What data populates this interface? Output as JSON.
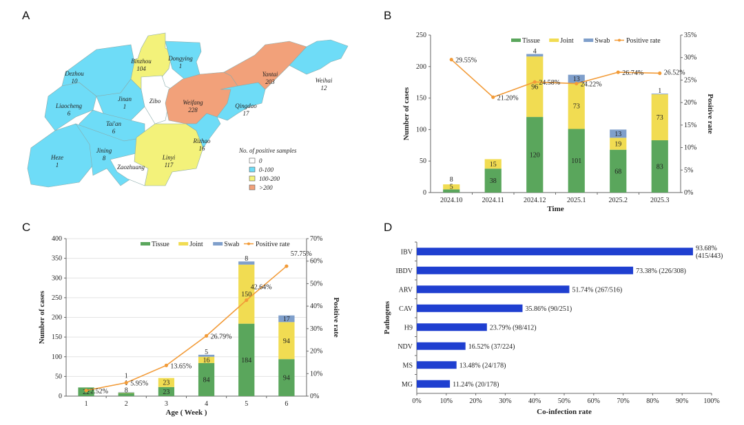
{
  "panels": {
    "a": "A",
    "b": "B",
    "c": "C",
    "d": "D"
  },
  "colors": {
    "tissue": "#5aa65c",
    "joint": "#f1dc52",
    "swab": "#7f9fcb",
    "rate": "#f29b38",
    "bar_d": "#1f3fd0",
    "map_zero": "#ffffff",
    "map_low": "#6edcf7",
    "map_mid": "#f3f27a",
    "map_high": "#f2a17a"
  },
  "map": {
    "legend_title": "No. of positive samples",
    "legend": [
      "0",
      "0-100",
      "100-200",
      ">200"
    ],
    "regions": [
      {
        "name": "Binzhou",
        "value": "104",
        "cls": "mid"
      },
      {
        "name": "Dongying",
        "value": "1",
        "cls": "low"
      },
      {
        "name": "Dezhou",
        "value": "10",
        "cls": "low"
      },
      {
        "name": "Jinan",
        "value": "1",
        "cls": "low"
      },
      {
        "name": "Zibo",
        "value": "",
        "cls": "zero"
      },
      {
        "name": "Liaocheng",
        "value": "6",
        "cls": "low"
      },
      {
        "name": "Weifang",
        "value": "228",
        "cls": "high"
      },
      {
        "name": "Qingdao",
        "value": "17",
        "cls": "low"
      },
      {
        "name": "Yantai",
        "value": "203",
        "cls": "high"
      },
      {
        "name": "Weihai",
        "value": "12",
        "cls": "low"
      },
      {
        "name": "Tai'an",
        "value": "6",
        "cls": "low"
      },
      {
        "name": "Heze",
        "value": "1",
        "cls": "low"
      },
      {
        "name": "Jining",
        "value": "8",
        "cls": "low"
      },
      {
        "name": "Zaozhuang",
        "value": "",
        "cls": "zero"
      },
      {
        "name": "Linyi",
        "value": "117",
        "cls": "mid"
      },
      {
        "name": "Rizhao",
        "value": "16",
        "cls": "low"
      }
    ]
  },
  "chart_data": [
    {
      "id": "b",
      "type": "bar",
      "stacked": true,
      "categories": [
        "2024.10",
        "2024.11",
        "2024.12",
        "2025.1",
        "2025.2",
        "2025.3"
      ],
      "series": [
        {
          "name": "Tissue",
          "values": [
            5,
            38,
            120,
            101,
            68,
            83
          ],
          "labels": [
            "5",
            "38",
            "120",
            "101",
            "68",
            "83"
          ]
        },
        {
          "name": "Joint",
          "values": [
            8,
            15,
            96,
            73,
            19,
            73
          ],
          "labels": [
            "8",
            "15",
            "96",
            "73",
            "19",
            "73"
          ]
        },
        {
          "name": "Swab",
          "values": [
            0,
            0,
            4,
            13,
            13,
            1
          ],
          "labels": [
            "",
            "",
            "4",
            "13",
            "13",
            "1"
          ]
        }
      ],
      "line": {
        "name": "Positive rate",
        "values": [
          29.55,
          21.2,
          24.58,
          24.22,
          26.74,
          26.52
        ],
        "labels": [
          "29.55%",
          "21.20%",
          "24.58%",
          "24.22%",
          "26.74%",
          "26.52%"
        ]
      },
      "xlabel": "Time",
      "ylabel": "Number of cases",
      "y2label": "Positive rate",
      "ylim": [
        0,
        250
      ],
      "yticks": [
        "0",
        "50",
        "100",
        "150",
        "200",
        "250"
      ],
      "y2lim": [
        0,
        35
      ],
      "y2ticks": [
        "0%",
        "5%",
        "10%",
        "15%",
        "20%",
        "25%",
        "30%",
        "35%"
      ],
      "legend": "top",
      "grid": false
    },
    {
      "id": "c",
      "type": "bar",
      "stacked": true,
      "categories": [
        "1",
        "2",
        "3",
        "4",
        "5",
        "6"
      ],
      "series": [
        {
          "name": "Tissue",
          "values": [
            22,
            8,
            23,
            84,
            184,
            94
          ],
          "labels": [
            "22",
            "8",
            "23",
            "84",
            "184",
            "94"
          ]
        },
        {
          "name": "Joint",
          "values": [
            0,
            1,
            23,
            16,
            150,
            94
          ],
          "labels": [
            "",
            "1",
            "23",
            "16",
            "150",
            "94"
          ]
        },
        {
          "name": "Swab",
          "values": [
            0,
            1,
            0,
            5,
            8,
            17
          ],
          "labels": [
            "",
            "1",
            "",
            "5",
            "8",
            "17"
          ]
        }
      ],
      "line": {
        "name": "Positive rate",
        "values": [
          2.52,
          5.95,
          13.65,
          26.79,
          42.64,
          57.75
        ],
        "labels": [
          "2.52%",
          "5.95%",
          "13.65%",
          "26.79%",
          "42.64%",
          "57.75%"
        ]
      },
      "xlabel": "Age ( Week )",
      "ylabel": "Number of cases",
      "y2label": "Positive rate",
      "ylim": [
        0,
        400
      ],
      "yticks": [
        "0",
        "50",
        "100",
        "150",
        "200",
        "250",
        "300",
        "350",
        "400"
      ],
      "y2lim": [
        0,
        70
      ],
      "y2ticks": [
        "0%",
        "10%",
        "20%",
        "30%",
        "40%",
        "50%",
        "60%",
        "70%"
      ],
      "legend": "top",
      "grid": true
    },
    {
      "id": "d",
      "type": "bar",
      "orientation": "horizontal",
      "categories": [
        "IBV",
        "IBDV",
        "ARV",
        "CAV",
        "H9",
        "NDV",
        "MS",
        "MG"
      ],
      "values": [
        93.68,
        73.38,
        51.74,
        35.86,
        23.79,
        16.52,
        13.48,
        11.24
      ],
      "labels": [
        "93.68% (415/443)",
        "73.38% (226/308)",
        "51.74% (267/516)",
        "35.86% (90/251)",
        "23.79% (98/412)",
        "16.52% (37/224)",
        "13.48% (24/178)",
        "11.24% (20/178)"
      ],
      "xlabel": "Co-infection rate",
      "ylabel": "Pathogens",
      "xlim": [
        0,
        100
      ],
      "xticks": [
        "0%",
        "10%",
        "20%",
        "30%",
        "40%",
        "50%",
        "60%",
        "70%",
        "80%",
        "90%",
        "100%"
      ],
      "grid": false
    }
  ]
}
